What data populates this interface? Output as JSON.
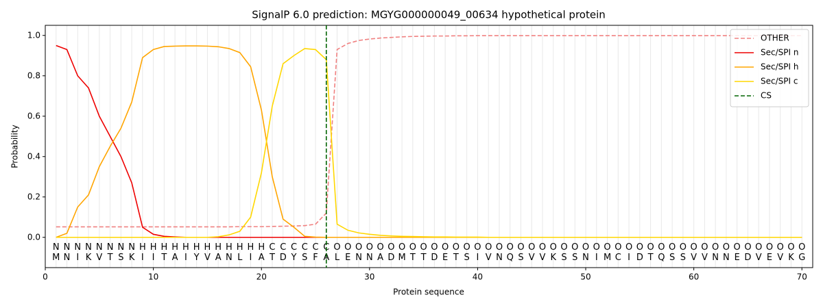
{
  "chart_data": {
    "type": "line",
    "title": "SignalP 6.0 prediction: MGYG000000049_00634 hypothetical protein",
    "xlabel": "Protein sequence",
    "ylabel": "Probability",
    "xlim": [
      0,
      71
    ],
    "xticks": [
      0,
      10,
      20,
      30,
      40,
      50,
      60,
      70
    ],
    "ylim": [
      -0.15,
      1.05
    ],
    "yticks": [
      {
        "value": 0,
        "label": "0.0"
      },
      0.2,
      0.4,
      0.6,
      0.8,
      {
        "value": 1,
        "label": "1.0"
      }
    ],
    "legend": "upper right",
    "x": [
      1,
      2,
      3,
      4,
      5,
      6,
      7,
      8,
      9,
      10,
      11,
      12,
      13,
      14,
      15,
      16,
      17,
      18,
      19,
      20,
      21,
      22,
      23,
      24,
      25,
      26,
      27,
      28,
      29,
      30,
      31,
      32,
      33,
      34,
      35,
      36,
      37,
      38,
      39,
      40,
      41,
      42,
      43,
      44,
      45,
      46,
      47,
      48,
      49,
      50,
      51,
      52,
      53,
      54,
      55,
      56,
      57,
      58,
      59,
      60,
      61,
      62,
      63,
      64,
      65,
      66,
      67,
      68,
      69,
      70
    ],
    "residues": [
      "M",
      "N",
      "I",
      "K",
      "V",
      "T",
      "S",
      "K",
      "I",
      "I",
      "T",
      "A",
      "I",
      "Y",
      "V",
      "A",
      "N",
      "L",
      "I",
      "A",
      "T",
      "D",
      "Y",
      "S",
      "F",
      "A",
      "L",
      "E",
      "N",
      "N",
      "A",
      "D",
      "M",
      "T",
      "T",
      "D",
      "E",
      "T",
      "S",
      "I",
      "V",
      "N",
      "Q",
      "S",
      "V",
      "V",
      "K",
      "S",
      "S",
      "N",
      "I",
      "M",
      "C",
      "I",
      "D",
      "T",
      "Q",
      "S",
      "S",
      "V",
      "V",
      "N",
      "N",
      "E",
      "D",
      "V",
      "E",
      "V",
      "K",
      "G"
    ],
    "residue_labels": [
      "N",
      "N",
      "N",
      "N",
      "N",
      "N",
      "N",
      "N",
      "H",
      "H",
      "H",
      "H",
      "H",
      "H",
      "H",
      "H",
      "H",
      "H",
      "H",
      "H",
      "C",
      "C",
      "C",
      "C",
      "C",
      "C",
      "O",
      "O",
      "O",
      "O",
      "O",
      "O",
      "O",
      "O",
      "O",
      "O",
      "O",
      "O",
      "O",
      "O",
      "O",
      "O",
      "O",
      "O",
      "O",
      "O",
      "O",
      "O",
      "O",
      "O",
      "O",
      "O",
      "O",
      "O",
      "O",
      "O",
      "O",
      "O",
      "O",
      "O",
      "O",
      "O",
      "O",
      "O",
      "O",
      "O",
      "O",
      "O",
      "O",
      "O"
    ],
    "label_colors": {
      "N": "#ee0000",
      "H": "#ffa500",
      "C": "#ffd700",
      "O": "#888888"
    },
    "series": [
      {
        "name": "OTHER",
        "color": "#f08080",
        "linestyle": "dashed",
        "values": [
          0.052,
          0.052,
          0.052,
          0.052,
          0.052,
          0.052,
          0.052,
          0.052,
          0.052,
          0.052,
          0.052,
          0.052,
          0.052,
          0.052,
          0.052,
          0.052,
          0.052,
          0.053,
          0.053,
          0.053,
          0.054,
          0.055,
          0.056,
          0.058,
          0.065,
          0.12,
          0.93,
          0.96,
          0.975,
          0.982,
          0.987,
          0.99,
          0.993,
          0.995,
          0.996,
          0.997,
          0.997,
          0.998,
          0.998,
          0.999,
          0.999,
          0.999,
          0.999,
          0.999,
          0.999,
          0.999,
          0.999,
          0.999,
          0.999,
          0.999,
          0.999,
          0.999,
          0.999,
          0.999,
          0.999,
          0.999,
          0.999,
          0.999,
          0.999,
          0.999,
          0.999,
          0.999,
          0.999,
          0.999,
          0.999,
          0.999,
          0.999,
          0.999,
          0.999,
          0.999
        ]
      },
      {
        "name": "Sec/SPI n",
        "color": "#ee0000",
        "linestyle": "solid",
        "values": [
          0.95,
          0.93,
          0.8,
          0.74,
          0.6,
          0.5,
          0.4,
          0.27,
          0.05,
          0.015,
          0.005,
          0.002,
          0,
          0,
          0,
          0,
          0,
          0,
          0,
          0,
          0,
          0,
          0,
          0,
          0,
          0,
          0,
          0,
          0,
          0,
          0,
          0,
          0,
          0,
          0,
          0,
          0,
          0,
          0,
          0,
          0,
          0,
          0,
          0,
          0,
          0,
          0,
          0,
          0,
          0,
          0,
          0,
          0,
          0,
          0,
          0,
          0,
          0,
          0,
          0,
          0,
          0,
          0,
          0,
          0,
          0,
          0,
          0,
          0,
          0
        ]
      },
      {
        "name": "Sec/SPI h",
        "color": "#ffa500",
        "linestyle": "solid",
        "values": [
          0,
          0.02,
          0.15,
          0.21,
          0.35,
          0.45,
          0.54,
          0.67,
          0.89,
          0.93,
          0.945,
          0.947,
          0.948,
          0.948,
          0.947,
          0.944,
          0.935,
          0.915,
          0.845,
          0.63,
          0.3,
          0.09,
          0.05,
          0.005,
          0.001,
          0,
          0,
          0,
          0,
          0,
          0,
          0,
          0,
          0,
          0,
          0,
          0,
          0,
          0,
          0,
          0,
          0,
          0,
          0,
          0,
          0,
          0,
          0,
          0,
          0,
          0,
          0,
          0,
          0,
          0,
          0,
          0,
          0,
          0,
          0,
          0,
          0,
          0,
          0,
          0,
          0,
          0,
          0,
          0,
          0
        ]
      },
      {
        "name": "Sec/SPI c",
        "color": "#ffd700",
        "linestyle": "solid",
        "values": [
          0,
          0,
          0,
          0,
          0,
          0,
          0,
          0,
          0,
          0,
          0,
          0,
          0,
          0,
          0,
          0.003,
          0.012,
          0.03,
          0.1,
          0.32,
          0.65,
          0.86,
          0.9,
          0.935,
          0.93,
          0.88,
          0.065,
          0.035,
          0.022,
          0.015,
          0.01,
          0.007,
          0.005,
          0.004,
          0.003,
          0.002,
          0.002,
          0.001,
          0.001,
          0.001,
          0,
          0,
          0,
          0,
          0,
          0,
          0,
          0,
          0,
          0,
          0,
          0,
          0,
          0,
          0,
          0,
          0,
          0,
          0,
          0,
          0,
          0,
          0,
          0,
          0,
          0,
          0,
          0,
          0,
          0
        ]
      }
    ],
    "cs": {
      "name": "CS",
      "color": "#006400",
      "x": 26
    }
  }
}
